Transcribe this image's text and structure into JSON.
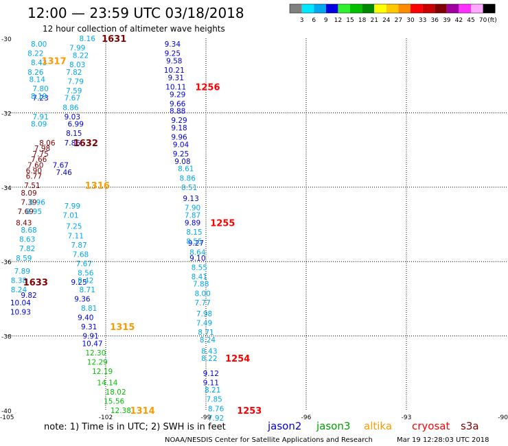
{
  "header": {
    "title": "12:00 — 23:59 UTC 03/18/2018",
    "subtitle": "12 hour collection of altimeter wave heights"
  },
  "colorbar": {
    "unit": "(ft)",
    "ticks": [
      "3",
      "6",
      "9",
      "12",
      "15",
      "18",
      "21",
      "24",
      "27",
      "30",
      "33",
      "36",
      "39",
      "42",
      "45",
      "70"
    ],
    "colors": [
      "#808080",
      "#00e8ff",
      "#00a8f0",
      "#0000e0",
      "#30f030",
      "#00c000",
      "#008800",
      "#ffff00",
      "#ffc800",
      "#ff8c00",
      "#ff0000",
      "#c80000",
      "#800000",
      "#a000a0",
      "#ff30ff",
      "#ffa8ff",
      "#000000"
    ]
  },
  "footer": {
    "note": "note: 1) Time is in UTC; 2) SWH is in feet",
    "legend": [
      {
        "name": "jason2",
        "color": "#0000e0"
      },
      {
        "name": "jason3",
        "color": "#00a000"
      },
      {
        "name": "altika",
        "color": "#ff9900"
      },
      {
        "name": "cryosat",
        "color": "#ff0000"
      },
      {
        "name": "s3a",
        "color": "#800000"
      }
    ],
    "credit": "NOAA/NESDIS Center for Satellite Applications and Research",
    "timestamp": "Mar 19 12:28:03 UTC 2018"
  },
  "chart_data": {
    "type": "scatter",
    "xlim": [
      -105,
      -90
    ],
    "ylim": [
      -40,
      -30
    ],
    "x_ticks": [
      -105,
      -102,
      -99,
      -96,
      -93,
      -90
    ],
    "y_ticks": [
      -30,
      -32,
      -34,
      -36,
      -38,
      -40
    ],
    "x_tick_labels": [
      "-105",
      "-102",
      "-99",
      "-96",
      "-93",
      "-90"
    ],
    "y_tick_labels": [
      "-30",
      "-32",
      "-34",
      "-36",
      "-38",
      "-40"
    ],
    "grid": true,
    "series": [
      {
        "name": "s3a",
        "color": "#800000",
        "points": [
          {
            "x": -103.75,
            "y": -32.8,
            "v": "8.06"
          },
          {
            "x": -103.9,
            "y": -32.95,
            "v": "7.98"
          },
          {
            "x": -103.95,
            "y": -33.1,
            "v": "7.75"
          },
          {
            "x": -104.0,
            "y": -33.25,
            "v": "7.66"
          },
          {
            "x": -104.1,
            "y": -33.4,
            "v": "7.60"
          },
          {
            "x": -104.15,
            "y": -33.55,
            "v": "6.90"
          },
          {
            "x": -104.15,
            "y": -33.7,
            "v": "6.77"
          },
          {
            "x": -104.2,
            "y": -33.95,
            "v": "7.51"
          },
          {
            "x": -104.3,
            "y": -34.15,
            "v": "8.09"
          },
          {
            "x": -104.3,
            "y": -34.4,
            "v": "7.39"
          },
          {
            "x": -104.4,
            "y": -34.65,
            "v": "7.69"
          },
          {
            "x": -104.45,
            "y": -34.95,
            "v": "8.43"
          }
        ]
      },
      {
        "name": "jason2",
        "color": "#0000e0",
        "points": [
          {
            "x": -103.95,
            "y": -31.6,
            "v": "7.23"
          },
          {
            "x": -103.0,
            "y": -32.1,
            "v": "9.03"
          },
          {
            "x": -102.9,
            "y": -32.3,
            "v": "6.99"
          },
          {
            "x": -102.95,
            "y": -32.55,
            "v": "8.15"
          },
          {
            "x": -103.0,
            "y": -32.8,
            "v": "7.86"
          },
          {
            "x": -103.35,
            "y": -33.4,
            "v": "7.67"
          },
          {
            "x": -103.25,
            "y": -33.6,
            "v": "7.46"
          },
          {
            "x": -102.8,
            "y": -36.55,
            "v": "9.25"
          },
          {
            "x": -102.7,
            "y": -37.0,
            "v": "9.36"
          },
          {
            "x": -102.6,
            "y": -37.5,
            "v": "9.40"
          },
          {
            "x": -102.5,
            "y": -37.75,
            "v": "9.31"
          },
          {
            "x": -102.45,
            "y": -38.0,
            "v": "9.91"
          },
          {
            "x": -102.4,
            "y": -38.2,
            "v": "10.47"
          },
          {
            "x": -104.3,
            "y": -36.9,
            "v": "9.82"
          },
          {
            "x": -104.55,
            "y": -37.1,
            "v": "10.04"
          },
          {
            "x": -104.55,
            "y": -37.35,
            "v": "10.93"
          },
          {
            "x": -100.0,
            "y": -30.15,
            "v": "9.34"
          },
          {
            "x": -100.0,
            "y": -30.4,
            "v": "9.25"
          },
          {
            "x": -99.95,
            "y": -30.6,
            "v": "9.58"
          },
          {
            "x": -99.95,
            "y": -30.85,
            "v": "10.21"
          },
          {
            "x": -99.9,
            "y": -31.05,
            "v": "9.31"
          },
          {
            "x": -99.9,
            "y": -31.3,
            "v": "10.11"
          },
          {
            "x": -99.85,
            "y": -31.5,
            "v": "9.29"
          },
          {
            "x": -99.85,
            "y": -31.75,
            "v": "9.66"
          },
          {
            "x": -99.85,
            "y": -31.95,
            "v": "8.88"
          },
          {
            "x": -99.8,
            "y": -32.2,
            "v": "9.29"
          },
          {
            "x": -99.8,
            "y": -32.4,
            "v": "9.18"
          },
          {
            "x": -99.8,
            "y": -32.65,
            "v": "9.96"
          },
          {
            "x": -99.75,
            "y": -32.85,
            "v": "9.04"
          },
          {
            "x": -99.75,
            "y": -33.1,
            "v": "9.25"
          },
          {
            "x": -99.7,
            "y": -33.3,
            "v": "9.08"
          },
          {
            "x": -99.45,
            "y": -34.3,
            "v": "9.13"
          },
          {
            "x": -99.4,
            "y": -34.95,
            "v": "9.89"
          },
          {
            "x": -99.3,
            "y": -35.5,
            "v": "9.27"
          },
          {
            "x": -99.25,
            "y": -35.9,
            "v": "9.10"
          },
          {
            "x": -98.85,
            "y": -39.0,
            "v": "9.12"
          },
          {
            "x": -98.85,
            "y": -39.25,
            "v": "9.11"
          }
        ]
      },
      {
        "name": "altika",
        "color": "#00a8f0",
        "points": [
          {
            "x": -104.0,
            "y": -30.15,
            "v": "8.00"
          },
          {
            "x": -104.1,
            "y": -30.4,
            "v": "8.22"
          },
          {
            "x": -104.0,
            "y": -30.65,
            "v": "8.43"
          },
          {
            "x": -104.1,
            "y": -30.9,
            "v": "8.26"
          },
          {
            "x": -104.05,
            "y": -31.1,
            "v": "8.14"
          },
          {
            "x": -103.95,
            "y": -31.35,
            "v": "7.80"
          },
          {
            "x": -104.0,
            "y": -31.55,
            "v": "8.19"
          },
          {
            "x": -103.95,
            "y": -32.1,
            "v": "7.91"
          },
          {
            "x": -104.0,
            "y": -32.3,
            "v": "8.09"
          },
          {
            "x": -104.05,
            "y": -34.4,
            "v": "6.96"
          },
          {
            "x": -104.15,
            "y": -34.65,
            "v": "8.95"
          },
          {
            "x": -104.3,
            "y": -35.15,
            "v": "8.68"
          },
          {
            "x": -104.35,
            "y": -35.4,
            "v": "8.63"
          },
          {
            "x": -104.35,
            "y": -35.65,
            "v": "7.82"
          },
          {
            "x": -104.45,
            "y": -35.9,
            "v": "8.59"
          },
          {
            "x": -104.5,
            "y": -36.25,
            "v": "7.89"
          },
          {
            "x": -104.6,
            "y": -36.5,
            "v": "8.38"
          },
          {
            "x": -104.6,
            "y": -36.75,
            "v": "8.24"
          },
          {
            "x": -102.55,
            "y": -30.0,
            "v": "8.16"
          },
          {
            "x": -102.85,
            "y": -30.25,
            "v": "7.99"
          },
          {
            "x": -102.75,
            "y": -30.45,
            "v": "8.22"
          },
          {
            "x": -102.85,
            "y": -30.7,
            "v": "8.03"
          },
          {
            "x": -102.95,
            "y": -30.9,
            "v": "7.82"
          },
          {
            "x": -102.9,
            "y": -31.15,
            "v": "7.79"
          },
          {
            "x": -102.95,
            "y": -31.4,
            "v": "7.59"
          },
          {
            "x": -103.0,
            "y": -31.6,
            "v": "7.67"
          },
          {
            "x": -103.05,
            "y": -31.85,
            "v": "8.86"
          },
          {
            "x": -103.0,
            "y": -34.5,
            "v": "7.99"
          },
          {
            "x": -103.05,
            "y": -34.75,
            "v": "7.01"
          },
          {
            "x": -102.95,
            "y": -35.05,
            "v": "7.25"
          },
          {
            "x": -102.9,
            "y": -35.3,
            "v": "7.11"
          },
          {
            "x": -102.8,
            "y": -35.55,
            "v": "7.87"
          },
          {
            "x": -102.75,
            "y": -35.8,
            "v": "7.68"
          },
          {
            "x": -102.65,
            "y": -36.05,
            "v": "7.67"
          },
          {
            "x": -102.6,
            "y": -36.3,
            "v": "8.56"
          },
          {
            "x": -102.6,
            "y": -36.5,
            "v": "8.42"
          },
          {
            "x": -102.55,
            "y": -36.75,
            "v": "8.71"
          },
          {
            "x": -102.5,
            "y": -37.25,
            "v": "8.81"
          },
          {
            "x": -99.6,
            "y": -33.5,
            "v": "8.61"
          },
          {
            "x": -99.55,
            "y": -33.75,
            "v": "8.86"
          },
          {
            "x": -99.5,
            "y": -34.0,
            "v": "8.51"
          },
          {
            "x": -99.4,
            "y": -34.55,
            "v": "7.90"
          },
          {
            "x": -99.4,
            "y": -34.75,
            "v": "7.87"
          },
          {
            "x": -99.35,
            "y": -35.2,
            "v": "8.15"
          },
          {
            "x": -99.35,
            "y": -35.45,
            "v": "8.55"
          },
          {
            "x": -99.25,
            "y": -35.75,
            "v": "8.64"
          },
          {
            "x": -99.2,
            "y": -36.15,
            "v": "8.55"
          },
          {
            "x": -99.2,
            "y": -36.4,
            "v": "8.41"
          },
          {
            "x": -99.15,
            "y": -36.6,
            "v": "7.88"
          },
          {
            "x": -99.1,
            "y": -36.85,
            "v": "8.00"
          },
          {
            "x": -99.1,
            "y": -37.1,
            "v": "7.77"
          },
          {
            "x": -99.05,
            "y": -37.4,
            "v": "7.98"
          },
          {
            "x": -99.05,
            "y": -37.65,
            "v": "7.49"
          },
          {
            "x": -99.0,
            "y": -37.9,
            "v": "8.71"
          },
          {
            "x": -98.95,
            "y": -38.1,
            "v": "8.24"
          },
          {
            "x": -98.9,
            "y": -38.4,
            "v": "8.43"
          },
          {
            "x": -98.9,
            "y": -38.6,
            "v": "8.22"
          },
          {
            "x": -98.8,
            "y": -39.45,
            "v": "8.21"
          },
          {
            "x": -98.75,
            "y": -39.7,
            "v": "7.85"
          },
          {
            "x": -98.7,
            "y": -39.95,
            "v": "8.76"
          },
          {
            "x": -98.7,
            "y": -40.2,
            "v": "7.92"
          }
        ]
      },
      {
        "name": "jason3",
        "color": "#00c000",
        "points": [
          {
            "x": -102.3,
            "y": -38.45,
            "v": "12.30"
          },
          {
            "x": -102.25,
            "y": -38.7,
            "v": "12.29"
          },
          {
            "x": -102.1,
            "y": -38.95,
            "v": "12.19"
          },
          {
            "x": -101.95,
            "y": -39.25,
            "v": "14.14"
          },
          {
            "x": -101.7,
            "y": -39.5,
            "v": "18.02"
          },
          {
            "x": -101.75,
            "y": -39.75,
            "v": "15.56"
          },
          {
            "x": -101.55,
            "y": -40.0,
            "v": "12.38"
          }
        ]
      }
    ],
    "annotations": [
      {
        "text": "1631",
        "x": -101.75,
        "y": -30.0,
        "color": "#800000"
      },
      {
        "text": "1317",
        "x": -103.55,
        "y": -30.6,
        "color": "#ff9900"
      },
      {
        "text": "1256",
        "x": -98.95,
        "y": -31.3,
        "color": "#ff0000"
      },
      {
        "text": "1632",
        "x": -102.6,
        "y": -32.8,
        "color": "#800000"
      },
      {
        "text": "1316",
        "x": -102.25,
        "y": -33.95,
        "color": "#ff9900"
      },
      {
        "text": "1255",
        "x": -98.5,
        "y": -34.95,
        "color": "#ff0000"
      },
      {
        "text": "1633",
        "x": -104.1,
        "y": -36.55,
        "color": "#800000"
      },
      {
        "text": "1315",
        "x": -101.5,
        "y": -37.75,
        "color": "#ff9900"
      },
      {
        "text": "1254",
        "x": -98.05,
        "y": -38.6,
        "color": "#ff0000"
      },
      {
        "text": "1314",
        "x": -100.9,
        "y": -40.0,
        "color": "#ff9900"
      },
      {
        "text": "1253",
        "x": -97.7,
        "y": -40.0,
        "color": "#ff0000"
      }
    ]
  }
}
